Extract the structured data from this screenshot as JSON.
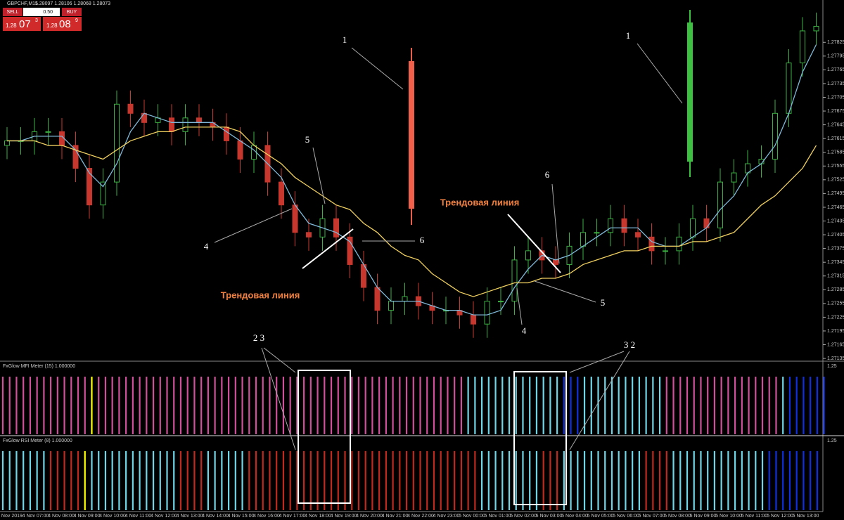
{
  "header": {
    "symbol": "GBPCHF,M15",
    "quote": "1.28097 1.28106 1.28068 1.28073"
  },
  "trade_panel": {
    "sell": "SELL",
    "lot": "0.50",
    "buy": "BUY",
    "bid_prefix": "1.28",
    "bid_big": "07",
    "bid_small": "3",
    "ask_prefix": "1.28",
    "ask_big": "08",
    "ask_small": "9"
  },
  "chart_data": {
    "type": "candlestick",
    "ylim": [
      1.27129,
      1.27899
    ],
    "yticks": [
      1.27825,
      1.27795,
      1.27765,
      1.27735,
      1.27705,
      1.27675,
      1.27645,
      1.27615,
      1.27585,
      1.27555,
      1.27525,
      1.27495,
      1.27465,
      1.27435,
      1.27405,
      1.27375,
      1.27345,
      1.27315,
      1.27285,
      1.27255,
      1.27225,
      1.27195,
      1.27165,
      1.27135
    ],
    "up_color": "#3cb043",
    "down_color": "#c8372d",
    "open": [
      1.276,
      1.2761,
      1.2761,
      1.2763,
      1.2763,
      1.276,
      1.2755,
      1.2747,
      1.2752,
      1.2769,
      1.2767,
      1.2765,
      1.2766,
      1.2763,
      1.2766,
      1.2765,
      1.2764,
      1.2761,
      1.2757,
      1.276,
      1.2752,
      1.2747,
      1.2741,
      1.274,
      1.2744,
      1.274,
      1.2734,
      1.2729,
      1.2724,
      1.2726,
      1.2727,
      1.2725,
      1.2724,
      1.2724,
      1.2723,
      1.2721,
      1.2726,
      1.2726,
      1.2735,
      1.2737,
      1.2735,
      1.2734,
      1.2738,
      1.2741,
      1.2741,
      1.2744,
      1.2741,
      1.274,
      1.2737,
      1.2737,
      1.274,
      1.2744,
      1.2742,
      1.2752,
      1.2754,
      1.2756,
      1.2757,
      1.2767,
      1.2778,
      1.2785
    ],
    "high": [
      1.2764,
      1.2764,
      1.2766,
      1.2766,
      1.2766,
      1.2763,
      1.2758,
      1.2755,
      1.2772,
      1.2772,
      1.277,
      1.2769,
      1.2769,
      1.2769,
      1.2769,
      1.2768,
      1.2767,
      1.2764,
      1.2763,
      1.2763,
      1.2755,
      1.275,
      1.2744,
      1.2747,
      1.2747,
      1.2743,
      1.2737,
      1.2732,
      1.2729,
      1.273,
      1.273,
      1.2728,
      1.2727,
      1.2727,
      1.2726,
      1.2729,
      1.2729,
      1.2738,
      1.274,
      1.274,
      1.2738,
      1.2741,
      1.2744,
      1.2744,
      1.2747,
      1.2747,
      1.2744,
      1.2743,
      1.274,
      1.2743,
      1.2747,
      1.2747,
      1.2755,
      1.2757,
      1.2759,
      1.276,
      1.277,
      1.2781,
      1.2788,
      1.2789
    ],
    "low": [
      1.2757,
      1.2758,
      1.2758,
      1.276,
      1.2757,
      1.2752,
      1.2744,
      1.2744,
      1.2749,
      1.2764,
      1.2762,
      1.2762,
      1.276,
      1.276,
      1.2762,
      1.2761,
      1.2758,
      1.2754,
      1.2754,
      1.2749,
      1.2744,
      1.2738,
      1.2737,
      1.2737,
      1.2737,
      1.2731,
      1.2726,
      1.2721,
      1.2721,
      1.2723,
      1.2722,
      1.2721,
      1.2721,
      1.272,
      1.2718,
      1.2718,
      1.2723,
      1.2723,
      1.2732,
      1.2732,
      1.2731,
      1.2731,
      1.2735,
      1.2738,
      1.2738,
      1.2738,
      1.2737,
      1.2734,
      1.2734,
      1.2734,
      1.2737,
      1.2739,
      1.2739,
      1.2749,
      1.2751,
      1.2753,
      1.2754,
      1.2764,
      1.2775,
      1.2782
    ],
    "close": [
      1.2761,
      1.2761,
      1.2763,
      1.2763,
      1.276,
      1.2755,
      1.2747,
      1.2752,
      1.2769,
      1.2767,
      1.2765,
      1.2766,
      1.2763,
      1.2766,
      1.2765,
      1.2764,
      1.2761,
      1.2757,
      1.276,
      1.2752,
      1.2747,
      1.2741,
      1.274,
      1.2744,
      1.274,
      1.2734,
      1.2729,
      1.2724,
      1.2726,
      1.2727,
      1.2725,
      1.2724,
      1.2724,
      1.2723,
      1.2721,
      1.2726,
      1.2726,
      1.2735,
      1.2737,
      1.2735,
      1.2734,
      1.2738,
      1.2741,
      1.2741,
      1.2744,
      1.2741,
      1.274,
      1.2737,
      1.2737,
      1.274,
      1.2744,
      1.2742,
      1.2752,
      1.2754,
      1.2756,
      1.2757,
      1.2767,
      1.2778,
      1.2785,
      1.2786
    ],
    "series": [
      {
        "color": "#7fb8d8",
        "values": [
          1.2761,
          1.2761,
          1.2762,
          1.2762,
          1.2762,
          1.2759,
          1.2754,
          1.2751,
          1.2756,
          1.2763,
          1.2767,
          1.2766,
          1.2765,
          1.2765,
          1.2765,
          1.2765,
          1.2763,
          1.2761,
          1.2759,
          1.2756,
          1.2753,
          1.2747,
          1.2743,
          1.2742,
          1.2741,
          1.2739,
          1.2734,
          1.2729,
          1.2726,
          1.2726,
          1.2726,
          1.2725,
          1.2724,
          1.2724,
          1.2723,
          1.2723,
          1.2724,
          1.2729,
          1.2733,
          1.2736,
          1.2735,
          1.2736,
          1.2738,
          1.274,
          1.2742,
          1.2742,
          1.2742,
          1.2739,
          1.2738,
          1.2738,
          1.274,
          1.2742,
          1.2746,
          1.2749,
          1.2754,
          1.2756,
          1.276,
          1.2767,
          1.2776,
          1.2782
        ]
      },
      {
        "color": "#f0d060",
        "values": [
          1.2761,
          1.2761,
          1.2761,
          1.276,
          1.276,
          1.2759,
          1.2758,
          1.2757,
          1.2759,
          1.2761,
          1.2762,
          1.2763,
          1.2763,
          1.2764,
          1.2764,
          1.2764,
          1.2764,
          1.2763,
          1.276,
          1.2758,
          1.2756,
          1.2753,
          1.2751,
          1.2749,
          1.2747,
          1.2746,
          1.2743,
          1.2741,
          1.2738,
          1.2736,
          1.2735,
          1.2732,
          1.273,
          1.2728,
          1.2727,
          1.2728,
          1.2729,
          1.273,
          1.273,
          1.2731,
          1.2731,
          1.2732,
          1.2734,
          1.2735,
          1.2736,
          1.2737,
          1.2737,
          1.2738,
          1.2738,
          1.2738,
          1.2739,
          1.2739,
          1.274,
          1.2741,
          1.2744,
          1.2747,
          1.2749,
          1.2752,
          1.2755,
          1.276
        ]
      }
    ],
    "xlabels": [
      "4 Nov 2019",
      "4 Nov 07:00",
      "4 Nov 08:00",
      "4 Nov 09:00",
      "4 Nov 10:00",
      "4 Nov 11:00",
      "4 Nov 12:00",
      "4 Nov 13:00",
      "4 Nov 14:00",
      "4 Nov 15:00",
      "4 Nov 16:00",
      "4 Nov 17:00",
      "4 Nov 18:00",
      "4 Nov 19:00",
      "4 Nov 20:00",
      "4 Nov 21:00",
      "4 Nov 22:00",
      "4 Nov 23:00",
      "5 Nov 00:00",
      "5 Nov 01:00",
      "5 Nov 02:00",
      "5 Nov 03:00",
      "5 Nov 04:00",
      "5 Nov 05:00",
      "5 Nov 06:00",
      "5 Nov 07:00",
      "5 Nov 08:00",
      "5 Nov 09:00",
      "5 Nov 10:00",
      "5 Nov 11:00",
      "5 Nov 12:00",
      "5 Nov 13:00"
    ]
  },
  "indicators": [
    {
      "title": "FxGlow MFI Meter (15) 1.000000",
      "scale": "1.25",
      "runs": [
        {
          "color": "#d0509c",
          "count": 13
        },
        {
          "color": "#ffff00",
          "count": 1
        },
        {
          "color": "#d0509c",
          "count": 54
        },
        {
          "color": "#6fd6e8",
          "count": 14
        },
        {
          "color": "#1030e0",
          "count": 3
        },
        {
          "color": "#6fd6e8",
          "count": 12
        },
        {
          "color": "#d0509c",
          "count": 17
        },
        {
          "color": "#6fd6e8",
          "count": 1
        },
        {
          "color": "#1030e0",
          "count": 6
        }
      ]
    },
    {
      "title": "FxGlow RSI Meter (8) 1.000000",
      "scale": "1.25",
      "runs": [
        {
          "color": "#6fd6e8",
          "count": 7
        },
        {
          "color": "#c02a1e",
          "count": 5
        },
        {
          "color": "#ffff00",
          "count": 1
        },
        {
          "color": "#6fd6e8",
          "count": 13
        },
        {
          "color": "#c02a1e",
          "count": 4
        },
        {
          "color": "#6fd6e8",
          "count": 6
        },
        {
          "color": "#c02a1e",
          "count": 34
        },
        {
          "color": "#6fd6e8",
          "count": 9
        },
        {
          "color": "#c02a1e",
          "count": 3
        },
        {
          "color": "#6fd6e8",
          "count": 12
        },
        {
          "color": "#c02a1e",
          "count": 4
        },
        {
          "color": "#6fd6e8",
          "count": 14
        },
        {
          "color": "#1030e0",
          "count": 8
        }
      ]
    }
  ],
  "annotations": {
    "n1a": "1",
    "n1b": "1",
    "n5a": "5",
    "n6a": "6",
    "n4a": "4",
    "n6b": "6",
    "n5b": "5",
    "n4b": "4",
    "trend_a": "Трендовая линия",
    "trend_b": "Трендовая линия",
    "n23": "2  3",
    "n32": "3  2"
  }
}
